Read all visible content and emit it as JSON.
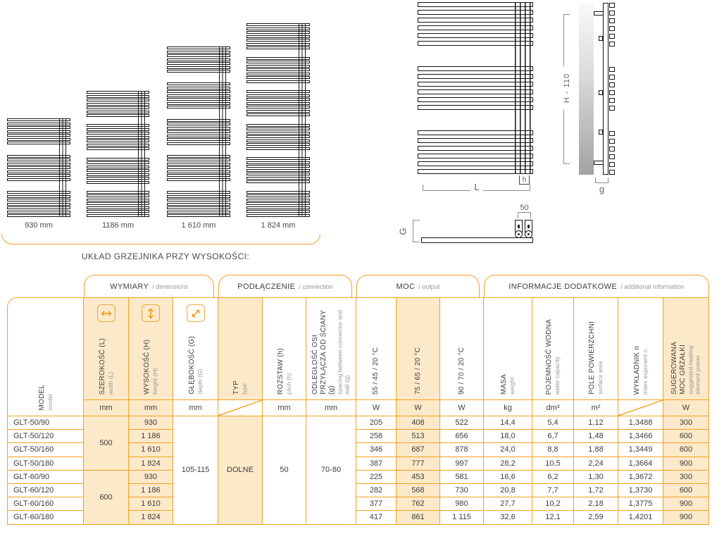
{
  "figures": {
    "caption": "UKŁAD GRZEJNIKA PRZY WYSOKOŚCI:",
    "radiators": [
      {
        "label": "930 mm"
      },
      {
        "label": "1186 mm"
      },
      {
        "label": "1 610 mm"
      },
      {
        "label": "1 824 mm"
      }
    ]
  },
  "diagram": {
    "height_label": "H - 110",
    "length_label": "L",
    "pitch_label": "h",
    "wall_distance_label": "g",
    "depth_label": "G",
    "connector_spacing_label": "50"
  },
  "table": {
    "groups": [
      {
        "label": "WYMIARY",
        "sub": "/ dimensions",
        "start": 2,
        "span": 3
      },
      {
        "label": "PODŁĄCZENIE",
        "sub": "/ connection",
        "start": 5,
        "span": 3
      },
      {
        "label": "MOC",
        "sub": "/ output",
        "start": 8,
        "span": 3
      },
      {
        "label": "INFORMACJE DODATKOWE",
        "sub": "/ additional information",
        "start": 11,
        "span": 5
      }
    ],
    "columns": [
      {
        "id": "model",
        "title": "MODEL",
        "subtitle": "model",
        "unit": ""
      },
      {
        "id": "width",
        "title": "SZEROKOŚĆ (L)",
        "subtitle": "width (L)",
        "unit": "mm",
        "cream": true,
        "icon": "width-icon"
      },
      {
        "id": "height",
        "title": "WYSOKOŚĆ (H)",
        "subtitle": "height (H)",
        "unit": "mm",
        "cream": true,
        "icon": "height-icon"
      },
      {
        "id": "depth",
        "title": "GŁĘBOKOŚĆ (G)",
        "subtitle": "depth (G)",
        "unit": "mm",
        "icon": "depth-icon"
      },
      {
        "id": "type",
        "title": "TYP",
        "subtitle": "type",
        "unit": "",
        "unit_slash": true,
        "cream": true
      },
      {
        "id": "pitch",
        "title": "ROZSTAW (h)",
        "subtitle": "pitch (h)",
        "unit": "mm"
      },
      {
        "id": "spacing",
        "title": "ODLEGŁOŚĆ OSI PRZYŁĄCZA OD ŚCIANY (g)",
        "subtitle": "spacing between connector and wall (g)",
        "unit": "mm"
      },
      {
        "id": "out55",
        "title": "55 / 45 / 20 °C",
        "subtitle": "",
        "unit": "W"
      },
      {
        "id": "out75",
        "title": "75 / 65 / 20 °C",
        "subtitle": "",
        "unit": "W",
        "cream": true
      },
      {
        "id": "out90",
        "title": "90 / 70 / 20 °C",
        "subtitle": "",
        "unit": "W"
      },
      {
        "id": "mass",
        "title": "MASA",
        "subtitle": "weight",
        "unit": "kg"
      },
      {
        "id": "capacity",
        "title": "POJEMNOŚĆ WODNA",
        "subtitle": "water capacity",
        "unit": "dm³"
      },
      {
        "id": "area",
        "title": "POLE POWIERZCHNI",
        "subtitle": "surface area",
        "unit": "m²"
      },
      {
        "id": "exponent",
        "title": "WYKŁADNIK n",
        "subtitle": "index exponent n",
        "unit": "",
        "unit_slash": true
      },
      {
        "id": "heater",
        "title": "SUGEROWANA MOC GRZAŁKI",
        "subtitle": "suggested heating element power",
        "unit": "W",
        "cream": true
      }
    ],
    "merged": {
      "width": [
        {
          "value": "500",
          "rows": 4
        },
        {
          "value": "600",
          "rows": 4
        }
      ],
      "depth": "105-115",
      "type": "DOLNE",
      "pitch": "50",
      "spacing": "70-80"
    },
    "rows": [
      [
        "GLT-50/90",
        "930",
        "205",
        "408",
        "522",
        "14,4",
        "5,4",
        "1,12",
        "1,3488",
        "300"
      ],
      [
        "GLT-50/120",
        "1 186",
        "258",
        "513",
        "656",
        "18,0",
        "6,7",
        "1,48",
        "1,3466",
        "600"
      ],
      [
        "GLT-50/160",
        "1 610",
        "346",
        "687",
        "878",
        "24,0",
        "8,8",
        "1,88",
        "1,3449",
        "600"
      ],
      [
        "GLT-50/180",
        "1 824",
        "387",
        "777",
        "997",
        "28,2",
        "10,5",
        "2,24",
        "1,3664",
        "900"
      ],
      [
        "GLT-60/90",
        "930",
        "225",
        "453",
        "581",
        "16,6",
        "6,2",
        "1,30",
        "1,3672",
        "300"
      ],
      [
        "GLT-60/120",
        "1 186",
        "282",
        "568",
        "730",
        "20,8",
        "7,7",
        "1,72",
        "1,3730",
        "600"
      ],
      [
        "GLT-60/160",
        "1 610",
        "377",
        "762",
        "980",
        "27,7",
        "10,2",
        "2,18",
        "1,3775",
        "900"
      ],
      [
        "GLT-60/180",
        "1 824",
        "417",
        "861",
        "1 115",
        "32,6",
        "12,1",
        "2,59",
        "1,4201",
        "900"
      ]
    ]
  }
}
